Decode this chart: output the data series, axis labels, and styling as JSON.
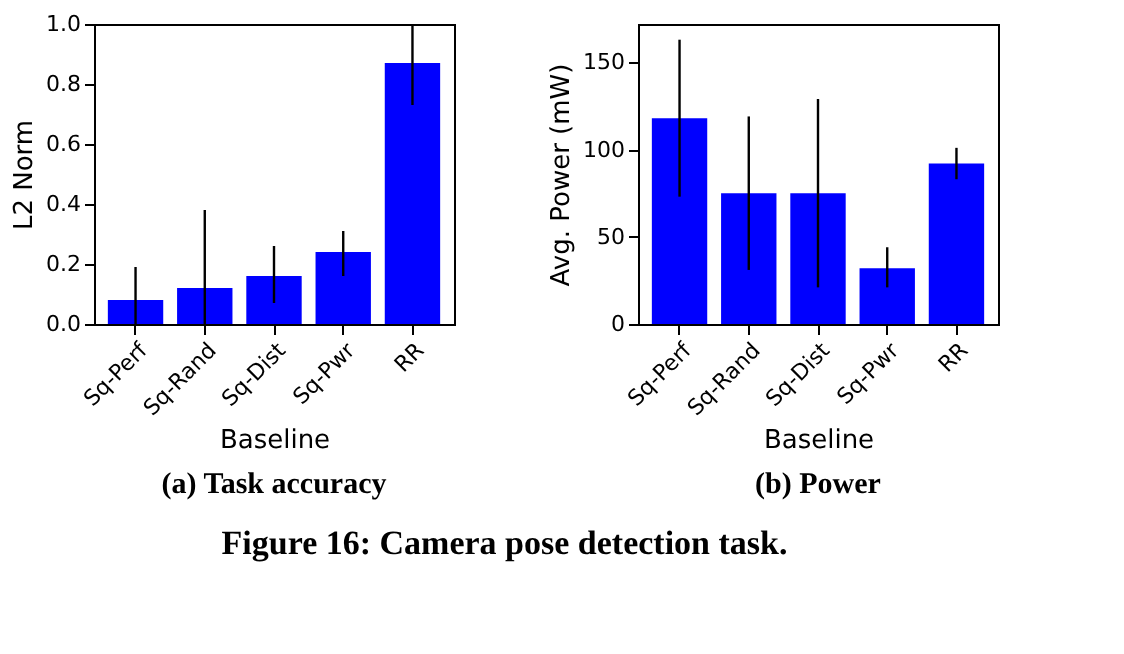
{
  "chart_data": [
    {
      "type": "bar",
      "title": "(a) Task accuracy",
      "xlabel": "Baseline",
      "ylabel": "L2 Norm",
      "categories": [
        "Sq-Perf",
        "Sq-Rand",
        "Sq-Dist",
        "Sq-Pwr",
        "RR"
      ],
      "values": [
        0.08,
        0.12,
        0.16,
        0.24,
        0.87
      ],
      "color": "#0000ff",
      "errors": [
        [
          0.0,
          0.19
        ],
        [
          0.0,
          0.38
        ],
        [
          0.07,
          0.26
        ],
        [
          0.16,
          0.31
        ],
        [
          0.73,
          1.0
        ]
      ],
      "ylim": [
        0,
        1.0
      ],
      "yticks": [
        {
          "value": 0,
          "label": "0.0"
        },
        {
          "value": 0.2,
          "label": "0.2"
        },
        {
          "value": 0.4,
          "label": "0.4"
        },
        {
          "value": 0.6,
          "label": "0.6"
        },
        {
          "value": 0.8,
          "label": "0.8"
        },
        {
          "value": 1.0,
          "label": "1.0"
        }
      ],
      "grid": false,
      "annotations": [
        "Figure 16: Camera pose detection task."
      ]
    },
    {
      "type": "bar",
      "title": "(b) Power",
      "xlabel": "Baseline",
      "ylabel": "Avg. Power (mW)",
      "categories": [
        "Sq-Perf",
        "Sq-Rand",
        "Sq-Dist",
        "Sq-Pwr",
        "RR"
      ],
      "values": [
        118,
        75,
        75,
        32,
        92
      ],
      "color": "#0000ff",
      "errors": [
        [
          73,
          163
        ],
        [
          31,
          119
        ],
        [
          21,
          129
        ],
        [
          21,
          44
        ],
        [
          83,
          101
        ]
      ],
      "ylim": [
        0,
        172
      ],
      "yticks": [
        0,
        50,
        100,
        150
      ],
      "grid": false
    }
  ]
}
